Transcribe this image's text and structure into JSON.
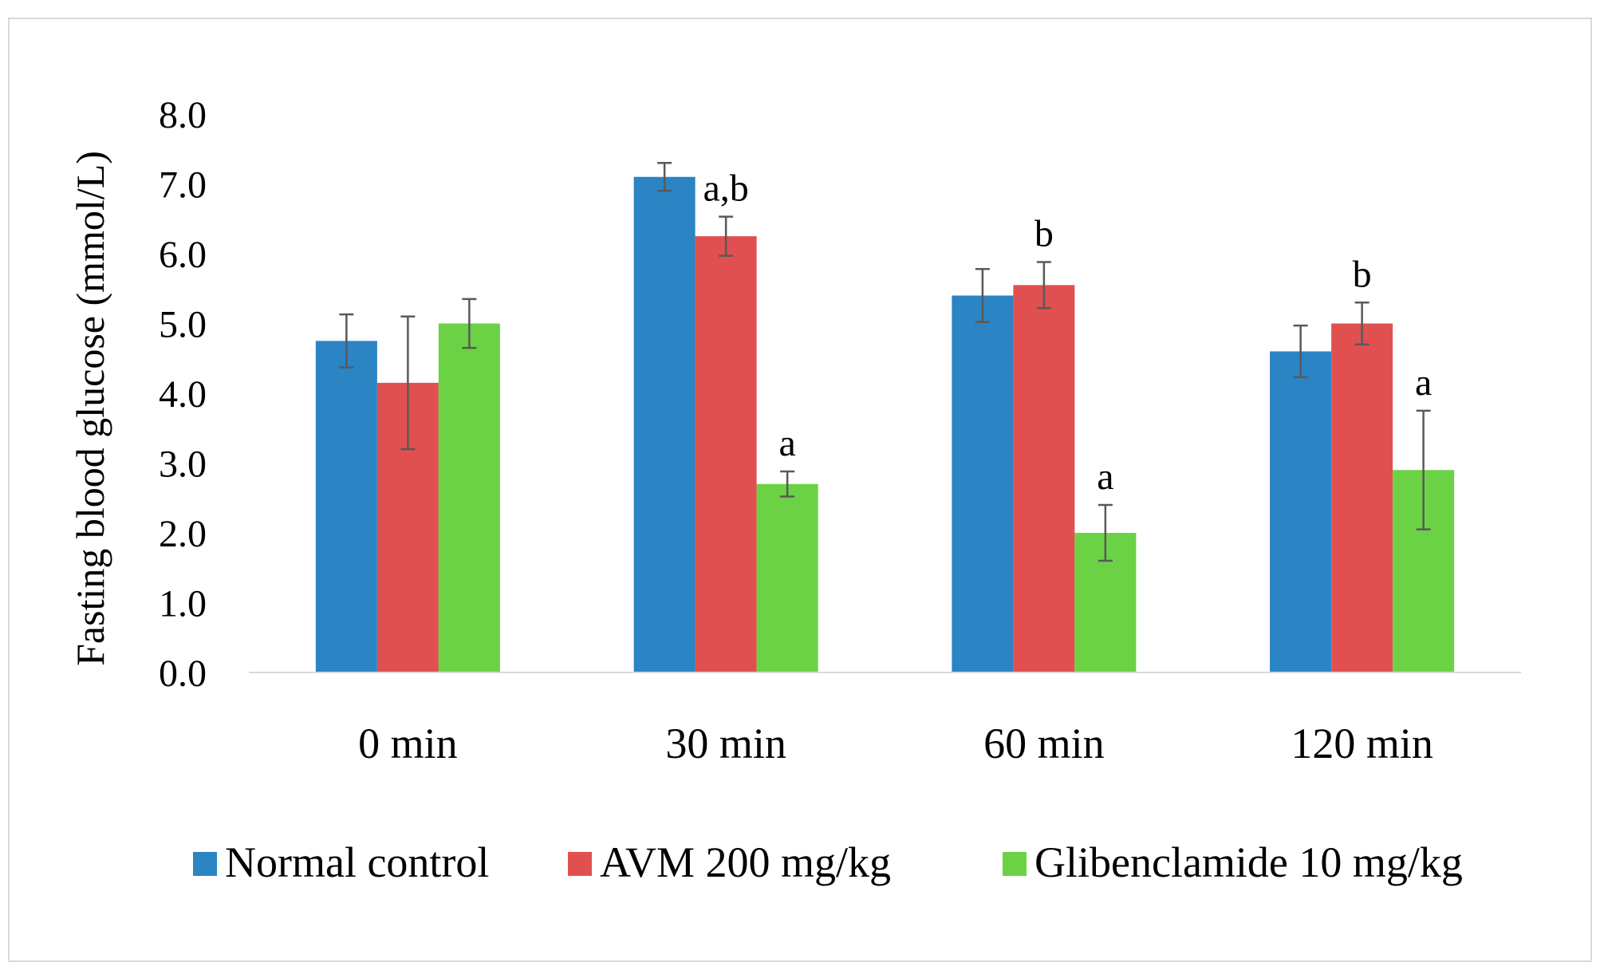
{
  "chart_data": {
    "type": "bar",
    "title": "",
    "xlabel": "",
    "ylabel": "Fasting blood glucose (mmol/L)",
    "ylim": [
      0,
      8
    ],
    "yticks": [
      "0.0",
      "1.0",
      "2.0",
      "3.0",
      "4.0",
      "5.0",
      "6.0",
      "7.0",
      "8.0"
    ],
    "grid": false,
    "legend_position": "bottom",
    "categories": [
      "0 min",
      "30 min",
      "60 min",
      "120 min"
    ],
    "series": [
      {
        "name": "Normal control",
        "color": "#2b84c3",
        "values": [
          4.75,
          7.1,
          5.4,
          4.6
        ],
        "errors": [
          0.38,
          0.2,
          0.38,
          0.37
        ],
        "annotations": [
          "",
          "",
          "",
          ""
        ]
      },
      {
        "name": "AVM 200 mg/kg",
        "color": "#e05050",
        "values": [
          4.15,
          6.25,
          5.55,
          5.0
        ],
        "errors": [
          0.95,
          0.28,
          0.33,
          0.3
        ],
        "annotations": [
          "",
          "a,b",
          "b",
          "b"
        ]
      },
      {
        "name": "Glibenclamide 10 mg/kg",
        "color": "#6cd245",
        "values": [
          5.0,
          2.7,
          2.0,
          2.9
        ],
        "errors": [
          0.35,
          0.18,
          0.4,
          0.85
        ],
        "annotations": [
          "",
          "a",
          "a",
          "a"
        ]
      }
    ]
  }
}
